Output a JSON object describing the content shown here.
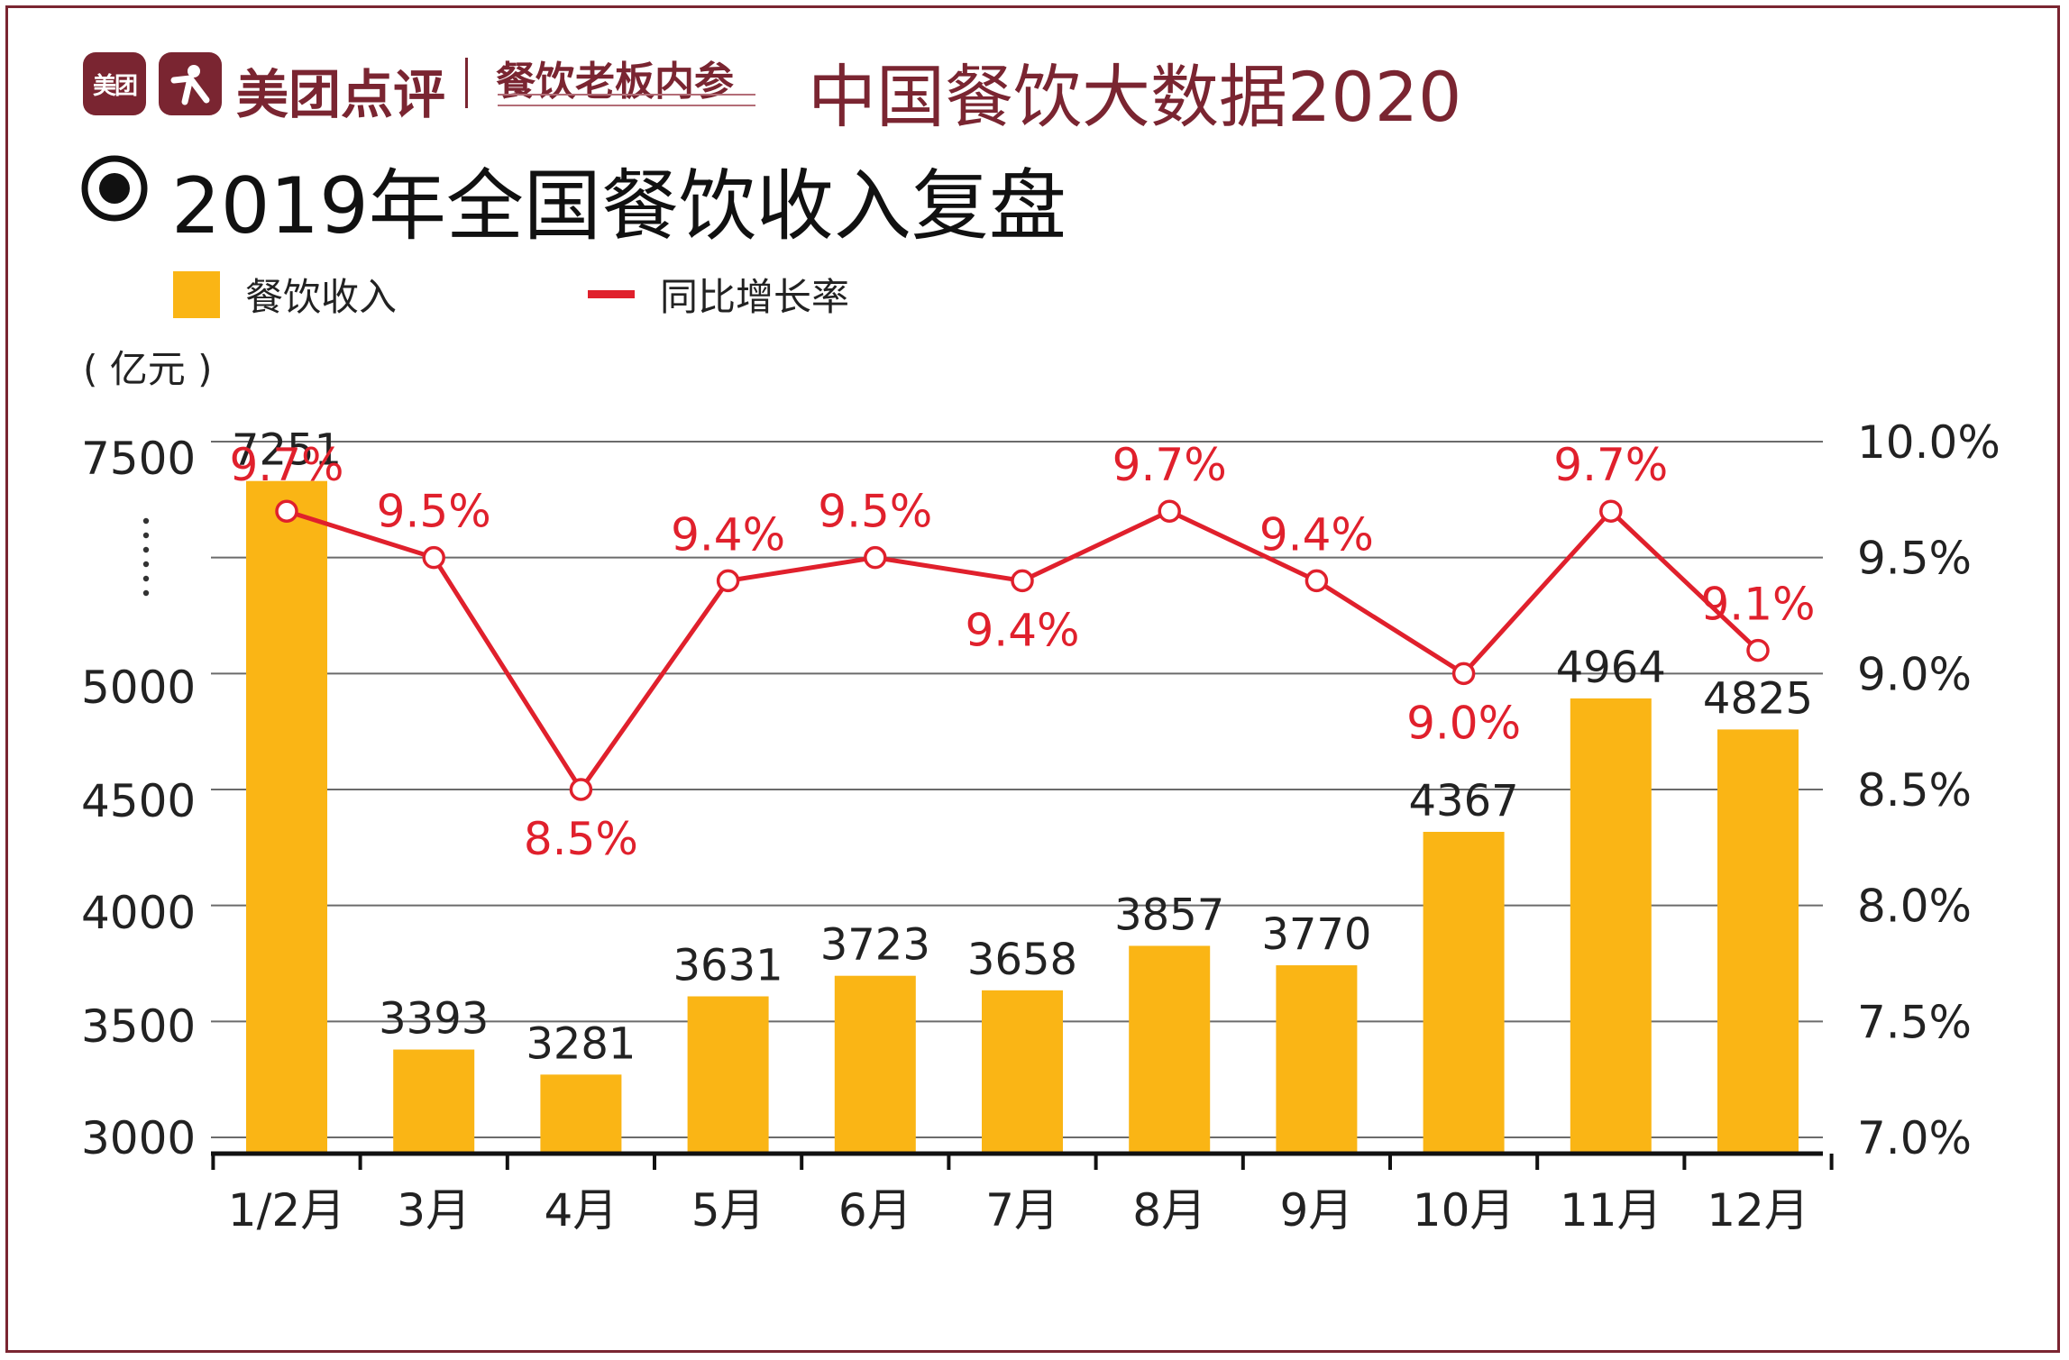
{
  "header": {
    "logo_badge": "美团",
    "brand": "美团点评",
    "brand2": "餐饮老板内参",
    "title": "中国餐饮大数据2020"
  },
  "main_title": "2019年全国餐饮收入复盘",
  "unit": "( 亿元 )",
  "colors": {
    "bar": "#fab515",
    "line": "#e0202c",
    "brand": "#7a2531",
    "grid": "#555555"
  },
  "chart_data": {
    "type": "bar",
    "categories": [
      "1/2月",
      "3月",
      "4月",
      "5月",
      "6月",
      "7月",
      "8月",
      "9月",
      "10月",
      "11月",
      "12月"
    ],
    "series": [
      {
        "name": "餐饮收入",
        "type": "bar",
        "axis": "left",
        "values": [
          7251,
          3393,
          3281,
          3631,
          3723,
          3658,
          3857,
          3770,
          4367,
          4964,
          4825
        ],
        "labels": [
          "7251",
          "3393",
          "3281",
          "3631",
          "3723",
          "3658",
          "3857",
          "3770",
          "4367",
          "4964",
          "4825"
        ]
      },
      {
        "name": "同比增长率",
        "type": "line",
        "axis": "right",
        "values": [
          9.7,
          9.5,
          8.5,
          9.4,
          9.5,
          9.4,
          9.7,
          9.4,
          9.0,
          9.7,
          9.1
        ],
        "labels": [
          "9.7%",
          "9.5%",
          "8.5%",
          "9.4%",
          "9.5%",
          "9.4%",
          "9.7%",
          "9.4%",
          "9.0%",
          "9.7%",
          "9.1%"
        ]
      }
    ],
    "y_left": {
      "ticks": [
        "3000",
        "3500",
        "4000",
        "4500",
        "5000",
        "7500"
      ],
      "axis_break": true
    },
    "y_right": {
      "range": [
        7.0,
        10.0
      ],
      "ticks": [
        "7.0%",
        "7.5%",
        "8.0%",
        "8.5%",
        "9.0%",
        "9.5%",
        "10.0%"
      ]
    },
    "legend": [
      "餐饮收入",
      "同比增长率"
    ],
    "legend_position": "top-left",
    "grid": true
  }
}
